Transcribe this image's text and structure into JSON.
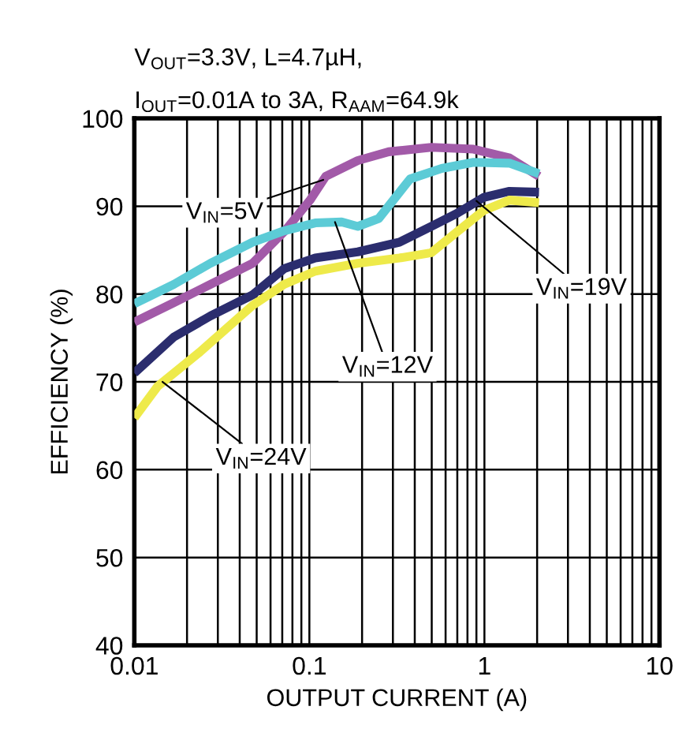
{
  "chart_data": {
    "type": "line",
    "title": "V$_{OUT}$=3.3V, L=4.7µH,",
    "subtitle": "I$_{OUT}$=0.01A to 3A, R$_{AAM}$=64.9k",
    "xlabel": "OUTPUT CURRENT (A)",
    "ylabel": "EFFICIENCY (%)",
    "log": "x",
    "xlim": [
      0.01,
      10
    ],
    "xticks": [
      0.01,
      0.1,
      1,
      10
    ],
    "ylim": [
      40,
      100
    ],
    "yticks": [
      40,
      50,
      60,
      70,
      80,
      90,
      100
    ],
    "grid": true,
    "marker": "none",
    "line_style": "solid",
    "series": [
      {
        "color": "#a25aa8",
        "x": [
          0.01,
          0.0168,
          0.0272,
          0.0474,
          0.0718,
          0.101,
          0.124,
          0.189,
          0.284,
          0.497,
          0.866,
          1.39,
          2.05
        ],
        "values": [
          76.8,
          79.0,
          81.1,
          83.5,
          87.1,
          90.7,
          93.4,
          95.2,
          96.2,
          96.7,
          96.5,
          95.5,
          93.4
        ]
      },
      {
        "color": "#5ccbd6",
        "x": [
          0.01,
          0.0168,
          0.0272,
          0.0474,
          0.0718,
          0.108,
          0.153,
          0.189,
          0.249,
          0.376,
          0.57,
          0.866,
          1.39,
          2.05
        ],
        "values": [
          78.9,
          81.1,
          83.5,
          85.9,
          87.2,
          88.1,
          88.2,
          87.7,
          88.6,
          93.1,
          94.3,
          95.0,
          94.9,
          93.7
        ]
      },
      {
        "color": "#2b2d6e",
        "x": [
          0.01,
          0.0168,
          0.0272,
          0.0474,
          0.0718,
          0.108,
          0.189,
          0.327,
          0.497,
          0.7,
          0.99,
          1.39,
          2.05
        ],
        "values": [
          71.0,
          75.1,
          77.5,
          79.9,
          82.9,
          84.1,
          84.8,
          85.9,
          87.7,
          89.2,
          91.0,
          91.7,
          91.6
        ]
      },
      {
        "color": "#eeea4a",
        "x": [
          0.01,
          0.0136,
          0.0237,
          0.0474,
          0.0718,
          0.108,
          0.189,
          0.327,
          0.497,
          0.7,
          0.99,
          1.39,
          2.05
        ],
        "values": [
          65.9,
          69.5,
          73.4,
          78.7,
          81.1,
          82.6,
          83.5,
          84.1,
          84.7,
          87.1,
          89.5,
          90.7,
          90.4
        ]
      }
    ],
    "annotations": [
      {
        "text": "V$_{IN}$=5V",
        "x": 0.12,
        "y": 93.0
      },
      {
        "text": "V$_{IN}$=12V",
        "x": 0.14,
        "y": 88.2
      },
      {
        "text": "V$_{IN}$=19V",
        "x": 0.9,
        "y": 90.6
      },
      {
        "text": "V$_{IN}$=24V",
        "x": 0.0145,
        "y": 70.0
      }
    ]
  }
}
